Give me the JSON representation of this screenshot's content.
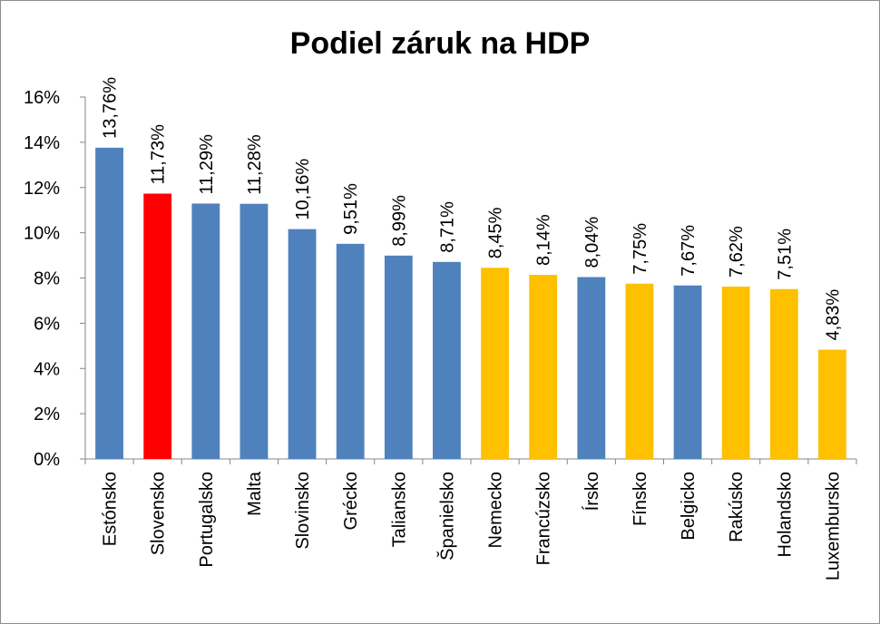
{
  "chart_data": {
    "type": "bar",
    "title": "Podiel záruk na HDP",
    "xlabel": "",
    "ylabel": "",
    "ylim": [
      0,
      16
    ],
    "yticks": [
      0,
      2,
      4,
      6,
      8,
      10,
      12,
      14,
      16
    ],
    "ytick_labels": [
      "0%",
      "2%",
      "4%",
      "6%",
      "8%",
      "10%",
      "12%",
      "14%",
      "16%"
    ],
    "grid": false,
    "legend": "none",
    "categories": [
      "Estónsko",
      "Slovensko",
      "Portugalsko",
      "Malta",
      "Slovinsko",
      "Grécko",
      "Taliansko",
      "Španielsko",
      "Nemecko",
      "Francúzsko",
      "Írsko",
      "Fínsko",
      "Belgicko",
      "Rakúsko",
      "Holandsko",
      "Luxembursko"
    ],
    "values": [
      13.76,
      11.73,
      11.29,
      11.28,
      10.16,
      9.51,
      8.99,
      8.71,
      8.45,
      8.14,
      8.04,
      7.75,
      7.67,
      7.62,
      7.51,
      4.83
    ],
    "value_labels": [
      "13,76%",
      "11,73%",
      "11,29%",
      "11,28%",
      "10,16%",
      "9,51%",
      "8,99%",
      "8,71%",
      "8,45%",
      "8,14%",
      "8,04%",
      "7,75%",
      "7,67%",
      "7,62%",
      "7,51%",
      "4,83%"
    ],
    "bar_colors": [
      "#4f81bd",
      "#ff0000",
      "#4f81bd",
      "#4f81bd",
      "#4f81bd",
      "#4f81bd",
      "#4f81bd",
      "#4f81bd",
      "#ffc000",
      "#ffc000",
      "#4f81bd",
      "#ffc000",
      "#4f81bd",
      "#ffc000",
      "#ffc000",
      "#ffc000"
    ],
    "axis_color": "#868686"
  }
}
